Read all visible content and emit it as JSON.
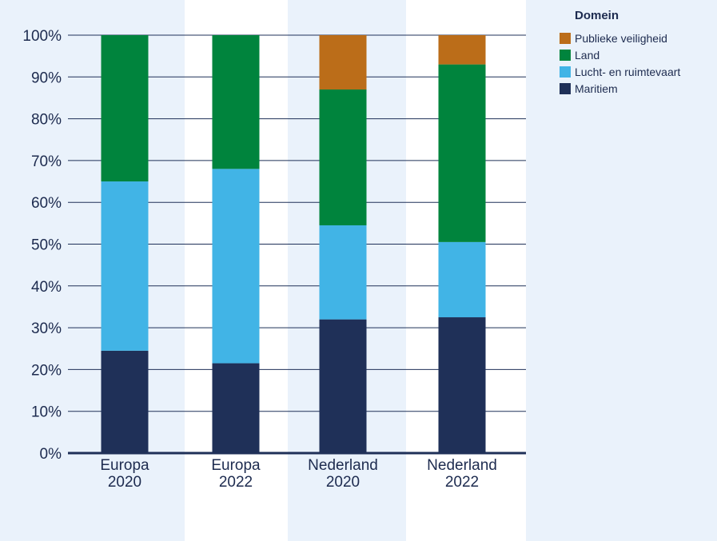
{
  "chart_data": {
    "type": "bar",
    "stacked": true,
    "title": "",
    "xlabel": "",
    "ylabel": "",
    "ylim": [
      0,
      100
    ],
    "y_ticks": [
      "0%",
      "10%",
      "20%",
      "30%",
      "40%",
      "50%",
      "60%",
      "70%",
      "80%",
      "90%",
      "100%"
    ],
    "categories": [
      [
        "Europa",
        "2020"
      ],
      [
        "Europa",
        "2022"
      ],
      [
        "Nederland",
        "2020"
      ],
      [
        "Nederland",
        "2022"
      ]
    ],
    "series": [
      {
        "name": "Maritiem",
        "color": "#1f3058",
        "values": [
          24.5,
          21.5,
          32,
          32.5
        ]
      },
      {
        "name": "Lucht- en ruimtevaart",
        "color": "#41b4e6",
        "values": [
          40.5,
          46.5,
          22.5,
          18
        ]
      },
      {
        "name": "Land",
        "color": "#00843d",
        "values": [
          35,
          32,
          32.5,
          42.5
        ]
      },
      {
        "name": "Publieke veiligheid",
        "color": "#bb6d19",
        "values": [
          0,
          0,
          13,
          7
        ]
      }
    ],
    "legend": {
      "title": "Domein",
      "position": "top-right",
      "order": [
        "Publieke veiligheid",
        "Land",
        "Lucht- en ruimtevaart",
        "Maritiem"
      ]
    },
    "grid": true,
    "colors": {
      "grid": "#1f3058",
      "axis": "#1f3058",
      "band": "#ffffff",
      "text": "#1d2b4f"
    }
  }
}
